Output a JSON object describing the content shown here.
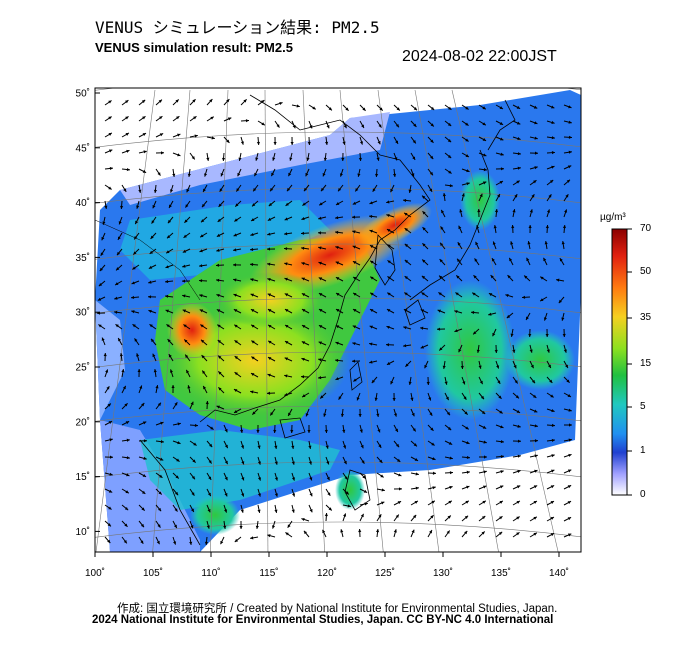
{
  "title_jp": "VENUS シミュレーション結果: PM2.5",
  "title_en": "VENUS simulation result: PM2.5",
  "timestamp": "2024-08-02 22:00JST",
  "credit": "作成: 国立環境研究所 / Created by National Institute for Environmental Studies, Japan.",
  "copyright": "2024 National Institute for Environmental Studies, Japan. CC BY-NC 4.0 International",
  "map": {
    "lat_ticks": [
      "50˚",
      "45˚",
      "40˚",
      "35˚",
      "30˚",
      "25˚",
      "20˚",
      "15˚",
      "10˚"
    ],
    "lon_ticks": [
      "100˚",
      "105˚",
      "110˚",
      "115˚",
      "120˚",
      "125˚",
      "130˚",
      "135˚",
      "140˚"
    ],
    "lat_values": [
      50,
      45,
      40,
      35,
      30,
      25,
      20,
      15,
      10
    ],
    "lon_values": [
      100,
      105,
      110,
      115,
      120,
      125,
      130,
      135,
      140
    ]
  },
  "colorbar": {
    "unit": "µg/m³",
    "labels": [
      "70",
      "50",
      "35",
      "15",
      "5",
      "1",
      "0"
    ],
    "colors": [
      "#8b0000",
      "#e02010",
      "#ff7a10",
      "#f5d020",
      "#8ce020",
      "#20c040",
      "#20c8c0",
      "#2090f0",
      "#2040d0",
      "#a0a0ff",
      "#ffffff"
    ]
  }
}
